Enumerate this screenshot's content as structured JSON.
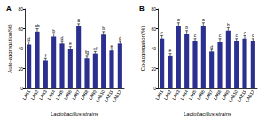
{
  "chart_data": [
    {
      "type": "bar",
      "title": "A",
      "x_label": "Lactobacillus strains",
      "y_label": "Auto-aggregation(%)",
      "categories": [
        "LAB1",
        "LAB2",
        "LAB3",
        "LAB4",
        "LAB5",
        "LAB6",
        "LAB7",
        "LAB8",
        "LAB9",
        "LAB10",
        "LAB11",
        "LAB12"
      ],
      "values": [
        44,
        57,
        28,
        52,
        45,
        40,
        63,
        30,
        35,
        54,
        38,
        45
      ],
      "errors": [
        3,
        3,
        2,
        3,
        3,
        2,
        2,
        3,
        2,
        3,
        2,
        3
      ],
      "letters": [
        "d",
        "ab",
        "f",
        "b",
        "d",
        "e",
        "a",
        "fg",
        "ef",
        "b",
        "e",
        "d"
      ],
      "color": "#2b2f8f",
      "ylim": [
        0,
        80
      ],
      "yticks": [
        0,
        20,
        40,
        60,
        80
      ]
    },
    {
      "type": "bar",
      "title": "B",
      "x_label": "Lactobacillus strains",
      "y_label": "Co-aggregation(%)",
      "categories": [
        "LAB1",
        "LAB2",
        "LAB3",
        "LAB4",
        "LAB5",
        "LAB6",
        "LAB7",
        "LAB8",
        "LAB9",
        "LAB10",
        "LAB11",
        "LAB12"
      ],
      "values": [
        50,
        33,
        63,
        55,
        48,
        63,
        37,
        47,
        58,
        48,
        50,
        48
      ],
      "errors": [
        3,
        2,
        3,
        3,
        2,
        3,
        2,
        3,
        3,
        2,
        3,
        2
      ],
      "letters": [
        "c",
        "e",
        "a",
        "b",
        "c",
        "a",
        "d",
        "c",
        "b",
        "c",
        "c",
        "c"
      ],
      "color": "#2b2f8f",
      "ylim": [
        0,
        80
      ],
      "yticks": [
        0,
        20,
        40,
        60,
        80
      ]
    }
  ]
}
